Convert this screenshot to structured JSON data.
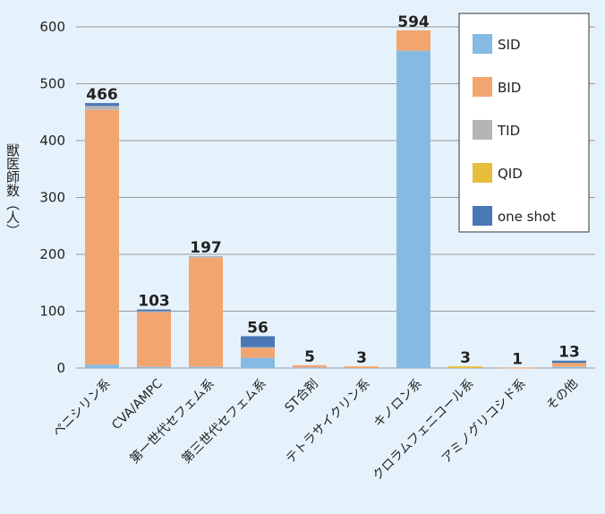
{
  "chart_data": {
    "type": "bar",
    "stacked": true,
    "ylabel": "獣医師数（人）",
    "ylim": [
      0,
      600
    ],
    "yticks": [
      0,
      100,
      200,
      300,
      400,
      500,
      600
    ],
    "grid": true,
    "legend_position": "top-right",
    "categories": [
      "ペニシリン系",
      "CVA/AMPC",
      "第一世代セフェム系",
      "第三世代セフェム系",
      "ST合剤",
      "テトラサイクリン系",
      "キノロン系",
      "クロラムフェニコール系",
      "アミノグリコシド系",
      "その他"
    ],
    "totals": [
      466,
      103,
      197,
      56,
      5,
      3,
      594,
      3,
      1,
      13
    ],
    "series": [
      {
        "name": "SID",
        "color": "#85bbe3",
        "values": [
          6,
          2,
          2,
          18,
          1,
          0,
          558,
          0,
          0,
          2
        ]
      },
      {
        "name": "BID",
        "color": "#f3a570",
        "values": [
          448,
          97,
          192,
          18,
          4,
          3,
          36,
          0,
          1,
          7
        ]
      },
      {
        "name": "TID",
        "color": "#b5b5b5",
        "values": [
          7,
          1,
          3,
          1,
          0,
          0,
          0,
          0,
          0,
          0
        ]
      },
      {
        "name": "QID",
        "color": "#e7bd3c",
        "values": [
          0,
          0,
          0,
          0,
          0,
          0,
          0,
          3,
          0,
          0
        ]
      },
      {
        "name": "one shot",
        "color": "#4a78b5",
        "values": [
          5,
          3,
          0,
          19,
          0,
          0,
          0,
          0,
          0,
          4
        ]
      }
    ]
  }
}
